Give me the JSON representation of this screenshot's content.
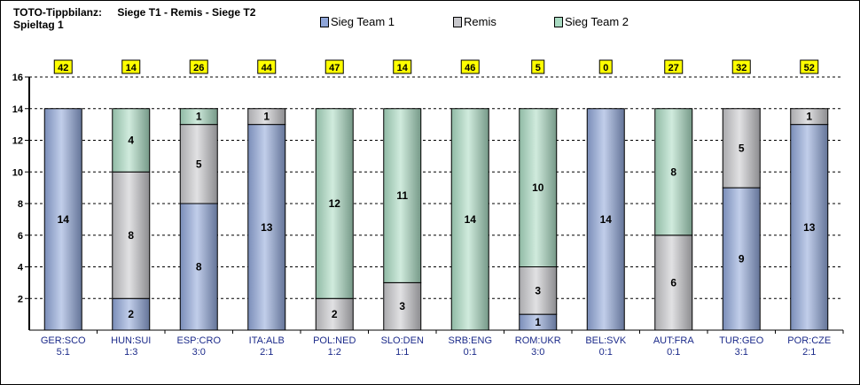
{
  "header": {
    "title_prefix": "TOTO-Tippbilanz:",
    "title_series": "Siege T1 - Remis - Siege T2",
    "subtitle": "Spieltag 1"
  },
  "colors": {
    "sieg_team_1": "#8fa6d9",
    "remis": "#c8c8cc",
    "sieg_team_2": "#a9dbc2",
    "top_label_fill": "#ffff00",
    "category_text": "#1b2a8a"
  },
  "chart_data": {
    "type": "bar",
    "stacked": true,
    "categories": [
      "GER:SCO",
      "HUN:SUI",
      "ESP:CRO",
      "ITA:ALB",
      "POL:NED",
      "SLO:DEN",
      "SRB:ENG",
      "ROM:UKR",
      "BEL:SVK",
      "AUT:FRA",
      "TUR:GEO",
      "POR:CZE"
    ],
    "results": [
      "5:1",
      "1:3",
      "3:0",
      "2:1",
      "1:2",
      "1:1",
      "0:1",
      "3:0",
      "0:1",
      "0:1",
      "3:1",
      "2:1"
    ],
    "top_labels": [
      "42",
      "14",
      "26",
      "44",
      "47",
      "14",
      "46",
      "5",
      "0",
      "27",
      "32",
      "52"
    ],
    "series": [
      {
        "name": "Sieg Team 1",
        "values": [
          14,
          2,
          8,
          13,
          0,
          0,
          0,
          1,
          14,
          0,
          9,
          13
        ]
      },
      {
        "name": "Remis",
        "values": [
          0,
          8,
          5,
          1,
          2,
          3,
          0,
          3,
          0,
          6,
          5,
          1
        ]
      },
      {
        "name": "Sieg Team 2",
        "values": [
          0,
          4,
          1,
          0,
          12,
          11,
          14,
          10,
          0,
          8,
          0,
          0
        ]
      }
    ],
    "ylim": [
      0,
      16
    ],
    "yticks": [
      2,
      4,
      6,
      8,
      10,
      12,
      14,
      16
    ],
    "grid": true,
    "legend_position": "top"
  }
}
